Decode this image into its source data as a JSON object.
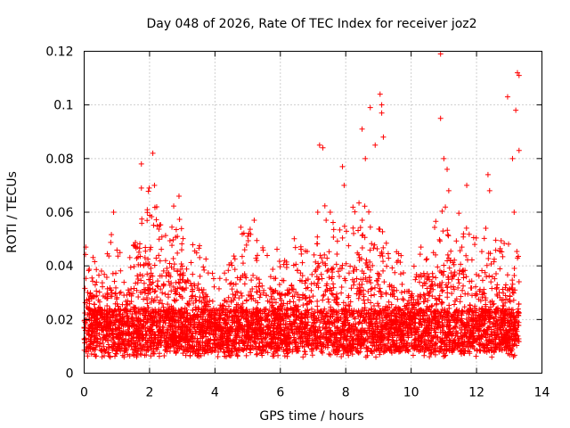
{
  "chart_data": {
    "type": "scatter",
    "title": "Day 048 of 2026, Rate Of TEC Index for receiver joz2",
    "xlabel": "GPS time / hours",
    "ylabel": "ROTI / TECUs",
    "xlim": [
      0,
      14
    ],
    "ylim": [
      0,
      0.12
    ],
    "x_ticks": [
      0,
      2,
      4,
      6,
      8,
      10,
      12,
      14
    ],
    "x_tick_labels": [
      "0",
      "2",
      "4",
      "6",
      "8",
      "10",
      "12",
      "14"
    ],
    "y_ticks": [
      0,
      0.02,
      0.04,
      0.06,
      0.08,
      0.1,
      0.12
    ],
    "y_tick_labels": [
      "0",
      "0.02",
      "0.04",
      "0.06",
      "0.08",
      "0.1",
      "0.12"
    ],
    "grid": true,
    "marker": "+",
    "color": "#ff0000",
    "series": [
      {
        "name": "ROTI",
        "x_range": [
          0,
          13.3
        ],
        "baseline": 0.015,
        "outliers": [
          [
            0.05,
            0.047
          ],
          [
            0.9,
            0.06
          ],
          [
            1.75,
            0.078
          ],
          [
            1.75,
            0.069
          ],
          [
            2.1,
            0.082
          ],
          [
            2.15,
            0.07
          ],
          [
            2.9,
            0.066
          ],
          [
            5.2,
            0.057
          ],
          [
            7.2,
            0.085
          ],
          [
            7.3,
            0.084
          ],
          [
            7.4,
            0.057
          ],
          [
            7.9,
            0.077
          ],
          [
            7.95,
            0.07
          ],
          [
            8.5,
            0.091
          ],
          [
            8.6,
            0.08
          ],
          [
            8.75,
            0.099
          ],
          [
            8.9,
            0.085
          ],
          [
            9.05,
            0.104
          ],
          [
            9.1,
            0.1
          ],
          [
            9.1,
            0.097
          ],
          [
            9.15,
            0.088
          ],
          [
            10.9,
            0.119
          ],
          [
            10.9,
            0.095
          ],
          [
            11.0,
            0.08
          ],
          [
            11.1,
            0.076
          ],
          [
            11.15,
            0.068
          ],
          [
            11.7,
            0.07
          ],
          [
            12.35,
            0.074
          ],
          [
            12.4,
            0.068
          ],
          [
            12.95,
            0.103
          ],
          [
            13.1,
            0.08
          ],
          [
            13.2,
            0.098
          ],
          [
            13.25,
            0.112
          ],
          [
            13.3,
            0.111
          ],
          [
            13.3,
            0.083
          ],
          [
            13.15,
            0.06
          ]
        ]
      }
    ]
  }
}
